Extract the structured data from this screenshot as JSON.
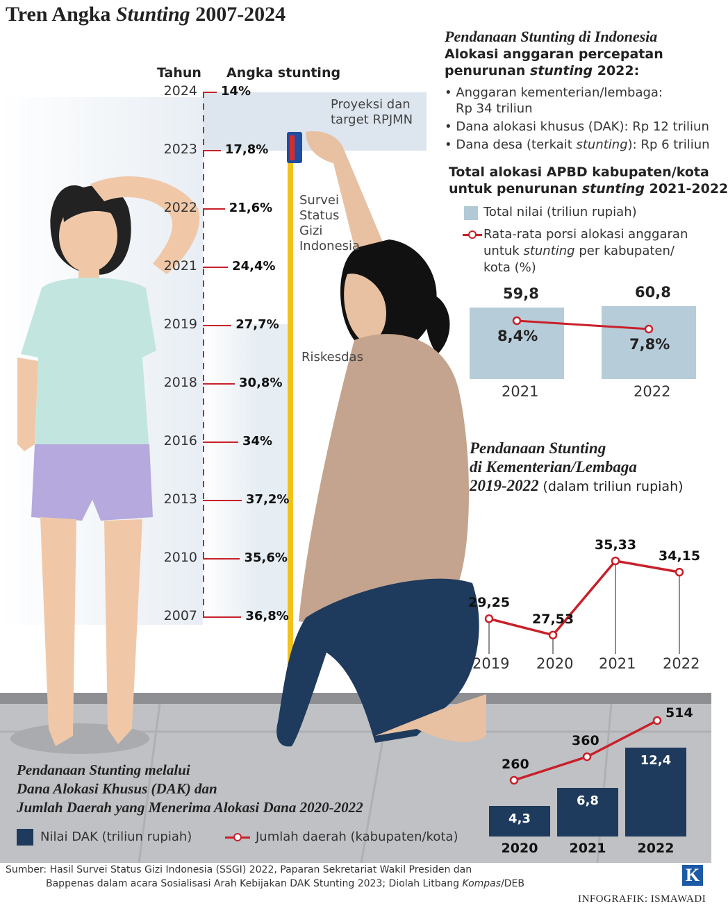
{
  "title_prefix": "Tren Angka ",
  "title_italic": "Stunting",
  "title_suffix": " 2007-2024",
  "trend": {
    "col_year": "Tahun",
    "col_value": "Angka stunting",
    "rows": [
      {
        "year": "2024",
        "value": "14%"
      },
      {
        "year": "2023",
        "value": "17,8%"
      },
      {
        "year": "2022",
        "value": "21,6%"
      },
      {
        "year": "2021",
        "value": "24,4%"
      },
      {
        "year": "2019",
        "value": "27,7%"
      },
      {
        "year": "2018",
        "value": "30,8%"
      },
      {
        "year": "2016",
        "value": "34%"
      },
      {
        "year": "2013",
        "value": "37,2%"
      },
      {
        "year": "2010",
        "value": "35,6%"
      },
      {
        "year": "2007",
        "value": "36,8%"
      }
    ],
    "band_proyeksi_line1": "Proyeksi dan",
    "band_proyeksi_line2": "target RPJMN",
    "band_ssgi": [
      "Survei",
      "Status",
      "Gizi",
      "Indonesia"
    ],
    "band_riskesdas": "Riskesdas"
  },
  "funding": {
    "heading": "Pendanaan Stunting di Indonesia",
    "sub_line1": "Alokasi anggaran percepatan",
    "sub_line2_prefix": "penurunan ",
    "sub_line2_italic": "stunting",
    "sub_line2_suffix": " 2022:",
    "b1_line1": "• Anggaran kementerian/lembaga:",
    "b1_line2": "Rp 34 triliun",
    "b2": "• Dana alokasi khusus (DAK): Rp 12 triliun",
    "b3_prefix": "• Dana desa (terkait ",
    "b3_italic": "stunting",
    "b3_suffix": "):  Rp 6 triliun"
  },
  "apbd": {
    "title_line1": "Total alokasi APBD kabupaten/kota",
    "title_line2_prefix": "untuk penurunan ",
    "title_line2_italic": "stunting",
    "title_line2_suffix": " 2021-2022",
    "legend_bar": "Total nilai (triliun rupiah)",
    "legend_line_l1": "Rata-rata porsi alokasi anggaran",
    "legend_line_l2_prefix": "untuk ",
    "legend_line_l2_italic": "stunting",
    "legend_line_l2_suffix": " per kabupaten/",
    "legend_line_l3": "kota (%)"
  },
  "kl": {
    "title_l1": "Pendanaan Stunting",
    "title_l2": "di Kementerian/Lembaga",
    "title_l3": "2019-2022",
    "unit": "(dalam triliun rupiah)"
  },
  "dak": {
    "title_l1": "Pendanaan Stunting melalui",
    "title_l2": "Dana Alokasi Khusus (DAK) dan",
    "title_l3": "Jumlah Daerah yang Menerima Alokasi Dana 2020-2022",
    "legend_bar": "Nilai DAK (triliun rupiah)",
    "legend_line": "Jumlah daerah (kabupaten/kota)"
  },
  "source_l1": "Sumber: Hasil Survei Status Gizi Indonesia (SSGI) 2022, Paparan Sekretariat Wakil Presiden dan",
  "source_l2_prefix": "Bappenas dalam acara Sosialisasi Arah Kebijakan DAK Stunting 2023; Diolah Litbang ",
  "source_l2_italic": "Kompas",
  "source_l2_suffix": "/DEB",
  "logo_letter": "K",
  "credit": "INFOGRAFIK: ISMAWADI",
  "colors": {
    "red": "#c8202a",
    "navy": "#1e3a5c",
    "lightblue": "#b7ccd9",
    "yellow": "#f2c21b"
  },
  "chart_data": [
    {
      "type": "bar",
      "title": "Total alokasi APBD kabupaten/kota untuk penurunan stunting 2021-2022",
      "categories": [
        "2021",
        "2022"
      ],
      "series": [
        {
          "name": "Total nilai (triliun rupiah)",
          "values": [
            59.8,
            60.8
          ],
          "labels": [
            "59,8",
            "60,8"
          ]
        },
        {
          "name": "Rata-rata porsi alokasi anggaran untuk stunting per kabupaten/kota (%)",
          "type": "line",
          "values": [
            8.4,
            7.8
          ],
          "labels": [
            "8,4%",
            "7,8%"
          ]
        }
      ]
    },
    {
      "type": "line",
      "title": "Pendanaan Stunting di Kementerian/Lembaga 2019-2022",
      "ylabel": "(dalam triliun rupiah)",
      "categories": [
        "2019",
        "2020",
        "2021",
        "2022"
      ],
      "values": [
        29.25,
        27.53,
        35.33,
        34.15
      ],
      "labels": [
        "29,25",
        "27,53",
        "35,33",
        "34,15"
      ]
    },
    {
      "type": "bar",
      "title": "Pendanaan Stunting melalui Dana Alokasi Khusus (DAK) dan Jumlah Daerah yang Menerima Alokasi Dana 2020-2022",
      "categories": [
        "2020",
        "2021",
        "2022"
      ],
      "series": [
        {
          "name": "Nilai DAK (triliun rupiah)",
          "values": [
            4.3,
            6.8,
            12.4
          ],
          "labels": [
            "4,3",
            "6,8",
            "12,4"
          ]
        },
        {
          "name": "Jumlah daerah (kabupaten/kota)",
          "type": "line",
          "values": [
            260,
            360,
            514
          ],
          "labels": [
            "260",
            "360",
            "514"
          ]
        }
      ]
    },
    {
      "type": "table",
      "title": "Tren Angka Stunting 2007-2024",
      "columns": [
        "Tahun",
        "Angka stunting"
      ],
      "rows": [
        [
          "2024",
          14
        ],
        [
          "2023",
          17.8
        ],
        [
          "2022",
          21.6
        ],
        [
          "2021",
          24.4
        ],
        [
          "2019",
          27.7
        ],
        [
          "2018",
          30.8
        ],
        [
          "2016",
          34
        ],
        [
          "2013",
          37.2
        ],
        [
          "2010",
          35.6
        ],
        [
          "2007",
          36.8
        ]
      ]
    }
  ]
}
